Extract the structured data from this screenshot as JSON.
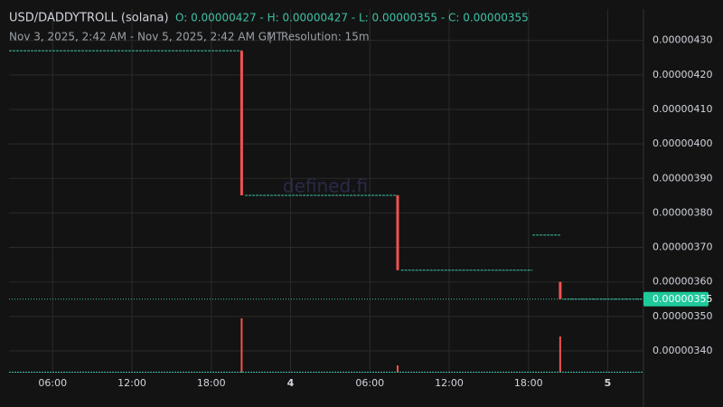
{
  "chart_data": {
    "type": "candlestick",
    "title": "USD/DADDYTROLL (solana)",
    "ohlc_summary": "O: 0.00000427 - H: 0.00000427 - L: 0.00000355 - C: 0.00000355",
    "subtitle": "Nov 3, 2025, 2:42 AM - Nov 5, 2025, 2:42 AM GMT",
    "separator": "|",
    "resolution": "Resolution: 15m",
    "watermark": "defined.fi",
    "x": [
      2.7,
      20.3,
      20.55,
      32.1,
      32.35,
      42.3,
      44.4,
      44.65
    ],
    "open": [
      4.27e-06,
      4.27e-06,
      3.851e-06,
      3.851e-06,
      3.634e-06,
      3.736e-06,
      3.6e-06,
      3.55e-06
    ],
    "high": [
      4.27e-06,
      4.27e-06,
      3.851e-06,
      3.851e-06,
      3.634e-06,
      3.736e-06,
      3.6e-06,
      3.55e-06
    ],
    "low": [
      4.27e-06,
      3.851e-06,
      3.851e-06,
      3.634e-06,
      3.634e-06,
      3.736e-06,
      3.55e-06,
      3.55e-06
    ],
    "close": [
      4.27e-06,
      3.851e-06,
      3.851e-06,
      3.634e-06,
      3.634e-06,
      3.736e-06,
      3.55e-06,
      3.55e-06
    ],
    "volume": [
      0,
      60,
      0,
      8,
      0,
      0,
      40,
      0
    ],
    "up_color": "#26a69a",
    "down_color": "#ef5350",
    "flat_color": "#3fc1a5",
    "xlim": [
      2.7,
      50.7
    ],
    "xticks": [
      {
        "value": 6,
        "label": "06:00"
      },
      {
        "value": 12,
        "label": "12:00"
      },
      {
        "value": 18,
        "label": "18:00"
      },
      {
        "value": 24,
        "label": "4"
      },
      {
        "value": 30,
        "label": "06:00"
      },
      {
        "value": 36,
        "label": "12:00"
      },
      {
        "value": 42,
        "label": "18:00"
      },
      {
        "value": 48,
        "label": "5"
      }
    ],
    "ylim": [
      3.337e-06,
      4.391e-06
    ],
    "yticks": [
      {
        "value": 4.3e-06,
        "label": "0.00000430"
      },
      {
        "value": 4.2e-06,
        "label": "0.00000420"
      },
      {
        "value": 4.1e-06,
        "label": "0.00000410"
      },
      {
        "value": 4e-06,
        "label": "0.00000400"
      },
      {
        "value": 3.9e-06,
        "label": "0.00000390"
      },
      {
        "value": 3.8e-06,
        "label": "0.00000380"
      },
      {
        "value": 3.7e-06,
        "label": "0.00000370"
      },
      {
        "value": 3.6e-06,
        "label": "0.00000360"
      },
      {
        "value": 3.5e-06,
        "label": "0.00000350"
      },
      {
        "value": 3.4e-06,
        "label": "0.00000340"
      }
    ],
    "last_price": {
      "value": 3.55e-06,
      "label": "0.00000355"
    },
    "grid": true
  }
}
